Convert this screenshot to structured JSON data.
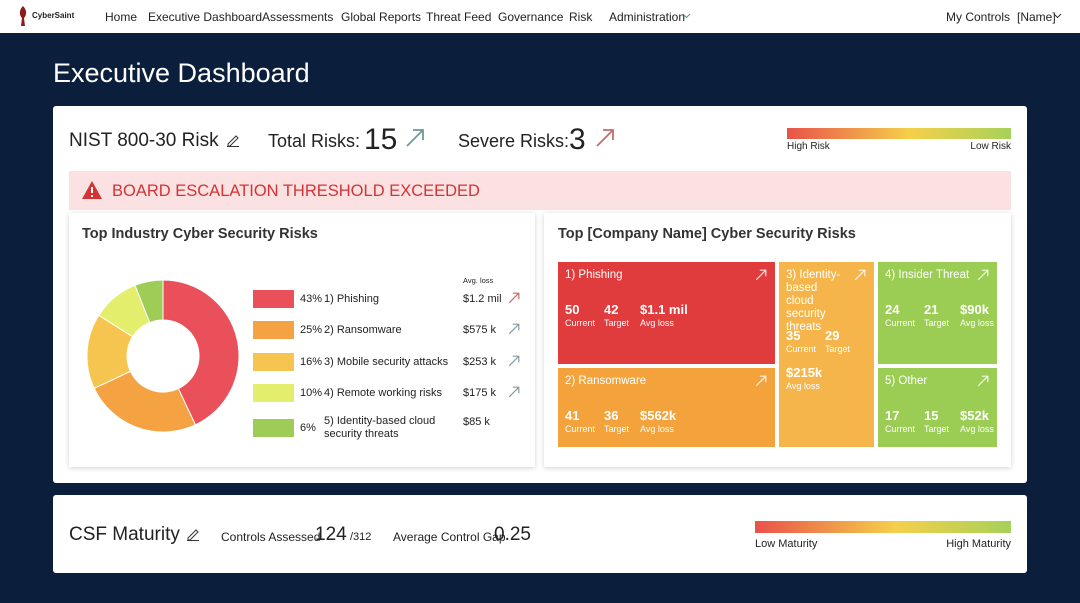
{
  "nav": {
    "brand": "CyberSaint",
    "items": [
      "Home",
      "Executive Dashboard",
      "Assessments",
      "Global Reports",
      "Threat Feed",
      "Governance",
      "Risk",
      "Administration"
    ],
    "right": [
      "My Controls",
      "[Name]"
    ]
  },
  "page_title": "Executive Dashboard",
  "risk_panel": {
    "title": "NIST 800-30 Risk",
    "total_label": "Total Risks:",
    "total": 15,
    "severe_label": "Severe Risks:",
    "severe": 3,
    "legend_high": "High Risk",
    "legend_low": "Low Risk",
    "alert": "BOARD ESCALATION THRESHOLD EXCEEDED",
    "industry": {
      "title": "Top Industry Cyber Security Risks",
      "avg_loss_header": "Avg. loss",
      "rows": [
        {
          "percent": 43,
          "percent_label": "43%",
          "name": "1) Phishing",
          "loss": "$1.2 mil",
          "color": "#e9505a"
        },
        {
          "percent": 25,
          "percent_label": "25%",
          "name": "2) Ransomware",
          "loss": "$575 k",
          "color": "#f4a242"
        },
        {
          "percent": 16,
          "percent_label": "16%",
          "name": "3) Mobile security attacks",
          "loss": "$253 k",
          "color": "#f6c550"
        },
        {
          "percent": 10,
          "percent_label": "10%",
          "name": "4) Remote working risks",
          "loss": "$175 k",
          "color": "#e3ee6c"
        },
        {
          "percent": 6,
          "percent_label": "6%",
          "name": "5) Identity-based cloud security threats",
          "loss": "$85 k",
          "color": "#9dcd57"
        }
      ]
    },
    "company": {
      "title": "Top [Company Name] Cyber Security Risks",
      "current_label": "Current",
      "target_label": "Target",
      "loss_label": "Avg loss",
      "tiles": [
        {
          "name": "1) Phishing",
          "current": 50,
          "target": 42,
          "loss": "$1.1 mil",
          "color": "#e03c3d"
        },
        {
          "name": "2) Ransomware",
          "current": 41,
          "target": 36,
          "loss": "$562k",
          "color": "#f4a23b"
        },
        {
          "name": "3) Identity-based cloud security threats",
          "current": 35,
          "target": 29,
          "loss": "$215k",
          "color": "#f5b54a"
        },
        {
          "name": "4) Insider Threat",
          "current": 24,
          "target": 21,
          "loss": "$90k",
          "color": "#9bcd54"
        },
        {
          "name": "5) Other",
          "current": 17,
          "target": 15,
          "loss": "$52k",
          "color": "#9bcd54"
        }
      ]
    }
  },
  "csf_panel": {
    "title": "CSF Maturity",
    "controls_label": "Controls Assessed",
    "controls": 124,
    "controls_total": "/312",
    "gap_label": "Average Control Gap",
    "gap": 0.25,
    "legend_low": "Low Maturity",
    "legend_high": "High Maturity"
  }
}
